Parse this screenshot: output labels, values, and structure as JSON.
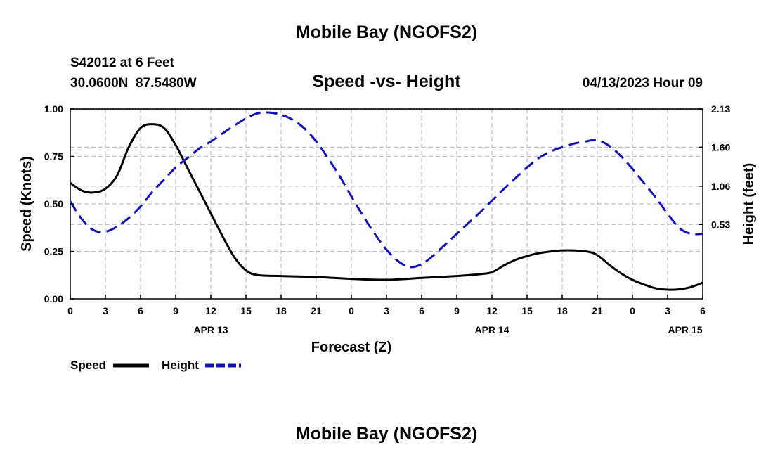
{
  "page": {
    "title_top": "Mobile Bay (NGOFS2)",
    "title_bottom": "Mobile Bay (NGOFS2)",
    "station_line1": "S42012 at 6 Feet",
    "station_line2": "30.0600N  87.5480W",
    "subtitle": "Speed -vs- Height",
    "run_time": "04/13/2023 Hour 09"
  },
  "chart_data": {
    "type": "line",
    "title": "Speed -vs- Height",
    "xlabel": "Forecast (Z)",
    "ylabel": "Speed (Knots)",
    "y2label": "Height (feet)",
    "xlim": [
      0,
      54
    ],
    "ylim": [
      0,
      1.0
    ],
    "y2lim": [
      -0.5,
      2.13
    ],
    "x_ticks": [
      0,
      3,
      6,
      9,
      12,
      15,
      18,
      21,
      24,
      27,
      30,
      33,
      36,
      39,
      42,
      45,
      48,
      51,
      54
    ],
    "x_tick_labels": [
      "0",
      "3",
      "6",
      "9",
      "12",
      "15",
      "18",
      "21",
      "0",
      "3",
      "6",
      "9",
      "12",
      "15",
      "18",
      "21",
      "0",
      "3",
      "6"
    ],
    "date_labels": [
      {
        "x": 12,
        "label": "APR 13"
      },
      {
        "x": 36,
        "label": "APR 14"
      },
      {
        "x": 52.5,
        "label": "APR 15"
      }
    ],
    "y_ticks": [
      0.0,
      0.25,
      0.5,
      0.75,
      1.0
    ],
    "y_tick_labels": [
      "0.00",
      "0.25",
      "0.50",
      "0.75",
      "1.00"
    ],
    "y2_ticks": [
      0.53,
      1.06,
      1.6,
      2.13
    ],
    "y2_tick_labels": [
      "0.53",
      "1.06",
      "1.60",
      "2.13"
    ],
    "grid": true,
    "legend": [
      {
        "name": "Speed",
        "color": "#000000",
        "style": "solid"
      },
      {
        "name": "Height",
        "color": "#1010cc",
        "style": "dashed"
      }
    ],
    "series": [
      {
        "name": "Speed",
        "axis": "left",
        "color": "#000000",
        "style": "solid",
        "x": [
          0,
          1,
          2,
          3,
          4,
          5,
          6,
          7,
          8,
          9,
          10,
          11,
          12,
          13,
          14,
          15,
          16,
          18,
          21,
          24,
          27,
          30,
          33,
          35,
          36,
          37,
          38,
          39,
          40,
          42,
          44,
          45,
          46,
          47,
          48,
          49,
          50,
          51,
          52,
          53,
          54
        ],
        "values": [
          0.61,
          0.57,
          0.56,
          0.58,
          0.65,
          0.8,
          0.9,
          0.92,
          0.9,
          0.81,
          0.69,
          0.57,
          0.45,
          0.33,
          0.22,
          0.15,
          0.125,
          0.12,
          0.115,
          0.105,
          0.1,
          0.11,
          0.12,
          0.13,
          0.14,
          0.175,
          0.205,
          0.225,
          0.24,
          0.255,
          0.25,
          0.23,
          0.18,
          0.135,
          0.1,
          0.075,
          0.055,
          0.048,
          0.05,
          0.062,
          0.085
        ]
      },
      {
        "name": "Height",
        "axis": "right",
        "color": "#1010cc",
        "style": "dashed",
        "x": [
          0,
          1,
          2,
          3,
          4,
          5,
          6,
          7,
          8,
          9,
          10,
          11,
          12,
          13,
          14,
          15,
          16,
          17,
          18,
          19,
          20,
          21,
          22,
          23,
          24,
          25,
          26,
          27,
          28,
          29,
          30,
          31,
          32,
          33,
          34,
          35,
          36,
          37,
          38,
          39,
          40,
          41,
          42,
          43,
          44,
          45,
          46,
          47,
          48,
          49,
          50,
          51,
          52,
          53,
          54
        ],
        "values": [
          0.85,
          0.6,
          0.45,
          0.43,
          0.5,
          0.62,
          0.78,
          0.98,
          1.15,
          1.32,
          1.45,
          1.58,
          1.68,
          1.79,
          1.9,
          2.0,
          2.07,
          2.08,
          2.05,
          1.98,
          1.86,
          1.68,
          1.45,
          1.2,
          0.92,
          0.65,
          0.4,
          0.18,
          0.02,
          -0.06,
          -0.02,
          0.1,
          0.25,
          0.4,
          0.55,
          0.7,
          0.86,
          1.02,
          1.17,
          1.32,
          1.45,
          1.54,
          1.6,
          1.65,
          1.68,
          1.7,
          1.62,
          1.48,
          1.3,
          1.1,
          0.9,
          0.68,
          0.48,
          0.4,
          0.4
        ]
      }
    ]
  }
}
